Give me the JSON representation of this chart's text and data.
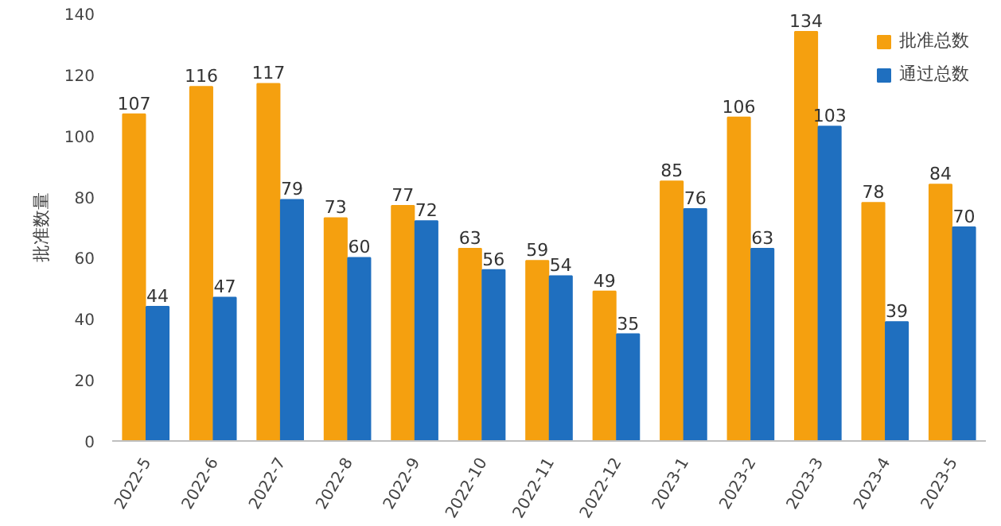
{
  "chart_data": {
    "type": "bar",
    "ylabel": "批准数量",
    "categories": [
      "2022-5",
      "2022-6",
      "2022-7",
      "2022-8",
      "2022-9",
      "2022-10",
      "2022-11",
      "2022-12",
      "2023-1",
      "2023-2",
      "2023-3",
      "2023-4",
      "2023-5"
    ],
    "series": [
      {
        "name": "批准总数",
        "color": "#f5a00f",
        "values": [
          107,
          116,
          117,
          73,
          77,
          63,
          59,
          49,
          85,
          106,
          134,
          78,
          84
        ]
      },
      {
        "name": "通过总数",
        "color": "#1f6fbf",
        "values": [
          44,
          47,
          79,
          60,
          72,
          56,
          54,
          35,
          76,
          63,
          103,
          39,
          70
        ]
      }
    ],
    "ylim": [
      0,
      140
    ],
    "yticks": [
      0,
      20,
      40,
      60,
      80,
      100,
      120,
      140
    ],
    "grid": false,
    "legend": "top right",
    "data_labels": true
  }
}
